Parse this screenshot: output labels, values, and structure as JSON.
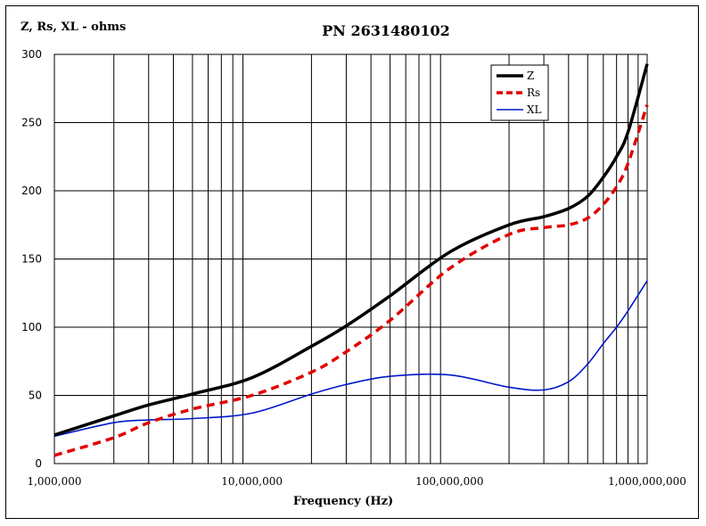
{
  "chart_data": {
    "type": "line",
    "title": "PN 2631480102",
    "ylabel": "Z, Rs, XL - ohms",
    "xlabel": "Frequency (Hz)",
    "xscale": "log",
    "xlim": [
      1000000,
      1000000000
    ],
    "ylim": [
      0,
      300
    ],
    "grid": true,
    "legend_position": "top-right",
    "x_tick_labels": [
      "1,000,000",
      "10,000,000",
      "100,000,000",
      "1,000,000,000"
    ],
    "y_tick_labels": [
      "0",
      "50",
      "100",
      "150",
      "200",
      "250",
      "300"
    ],
    "x_tick_values": [
      1000000,
      10000000,
      100000000,
      1000000000
    ],
    "y_tick_values": [
      0,
      50,
      100,
      150,
      200,
      250,
      300
    ],
    "x": [
      1000000,
      2000000,
      3000000,
      5000000,
      10000000,
      20000000,
      30000000,
      50000000,
      100000000,
      200000000,
      300000000,
      400000000,
      500000000,
      600000000,
      700000000,
      800000000,
      1000000000
    ],
    "series": [
      {
        "name": "Z",
        "color": "#000000",
        "style": "solid-thick",
        "values": [
          21,
          35,
          43,
          51,
          63,
          86,
          101,
          123,
          155,
          175,
          181,
          187,
          196,
          210,
          225,
          243,
          293
        ]
      },
      {
        "name": "Rs",
        "color": "#e00000",
        "style": "dashed",
        "values": [
          6,
          19,
          30,
          40,
          50,
          67,
          82,
          105,
          143,
          168,
          173,
          175,
          180,
          190,
          203,
          220,
          263
        ]
      },
      {
        "name": "XL",
        "color": "#0018c8",
        "style": "solid-thin",
        "values": [
          20,
          30,
          32,
          33,
          37,
          51,
          58,
          64,
          65,
          56,
          54,
          60,
          73,
          88,
          100,
          112,
          134
        ]
      }
    ]
  }
}
